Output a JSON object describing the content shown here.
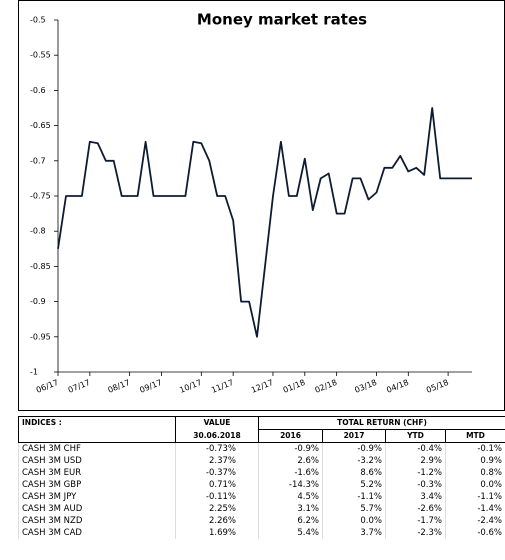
{
  "chart_data": {
    "type": "line",
    "title": "Money market rates",
    "categories": [
      "06/17",
      null,
      null,
      null,
      "07/17",
      null,
      null,
      null,
      null,
      "08/17",
      null,
      null,
      null,
      "09/17",
      null,
      null,
      null,
      null,
      "10/17",
      null,
      null,
      null,
      "11/17",
      null,
      null,
      null,
      null,
      "12/17",
      null,
      null,
      null,
      "01/18",
      null,
      null,
      null,
      "02/18",
      null,
      null,
      null,
      null,
      "03/18",
      null,
      null,
      null,
      "04/18",
      null,
      null,
      null,
      null,
      "05/18",
      null,
      null,
      null
    ],
    "series": [
      {
        "name": "CASH 3M CHF",
        "color": "#0d1b33",
        "values": [
          -0.825,
          -0.75,
          -0.75,
          -0.75,
          -0.673,
          -0.675,
          -0.7,
          -0.7,
          -0.75,
          -0.75,
          -0.75,
          -0.673,
          -0.75,
          -0.75,
          -0.75,
          -0.75,
          -0.75,
          -0.673,
          -0.675,
          -0.7,
          -0.75,
          -0.75,
          -0.785,
          -0.9,
          -0.9,
          -0.95,
          -0.85,
          -0.75,
          -0.673,
          -0.75,
          -0.75,
          -0.697,
          -0.77,
          -0.725,
          -0.718,
          -0.775,
          -0.775,
          -0.725,
          -0.725,
          -0.755,
          -0.745,
          -0.71,
          -0.71,
          -0.693,
          -0.715,
          -0.71,
          -0.72,
          -0.625,
          -0.725,
          -0.725,
          -0.725,
          -0.725,
          -0.725
        ]
      }
    ],
    "ylim": [
      -1,
      -0.5
    ],
    "yticks": [
      -1,
      -0.95,
      -0.9,
      -0.85,
      -0.8,
      -0.75,
      -0.7,
      -0.65,
      -0.6,
      -0.55,
      -0.5
    ]
  },
  "table": {
    "header": [
      "INDICES :",
      "VALUE",
      "TOTAL RETURN (CHF)"
    ],
    "subheader": [
      "30.06.2018",
      "2016",
      "2017",
      "YTD",
      "MTD"
    ],
    "rows": [
      [
        "CASH 3M CHF",
        "-0.73%",
        "-0.9%",
        "-0.9%",
        "-0.4%",
        "-0.1%"
      ],
      [
        "CASH 3M USD",
        "2.37%",
        "2.6%",
        "-3.2%",
        "2.9%",
        "0.9%"
      ],
      [
        "CASH 3M EUR",
        "-0.37%",
        "-1.6%",
        "8.6%",
        "-1.2%",
        "0.8%"
      ],
      [
        "CASH 3M GBP",
        "0.71%",
        "-14.3%",
        "5.2%",
        "-0.3%",
        "0.0%"
      ],
      [
        "CASH 3M JPY",
        "-0.11%",
        "4.5%",
        "-1.1%",
        "3.4%",
        "-1.1%"
      ],
      [
        "CASH 3M AUD",
        "2.25%",
        "3.1%",
        "5.7%",
        "-2.6%",
        "-1.4%"
      ],
      [
        "CASH 3M NZD",
        "2.26%",
        "6.2%",
        "0.0%",
        "-1.7%",
        "-2.4%"
      ],
      [
        "CASH 3M CAD",
        "1.69%",
        "5.4%",
        "3.7%",
        "-2.3%",
        "-0.6%"
      ]
    ]
  }
}
